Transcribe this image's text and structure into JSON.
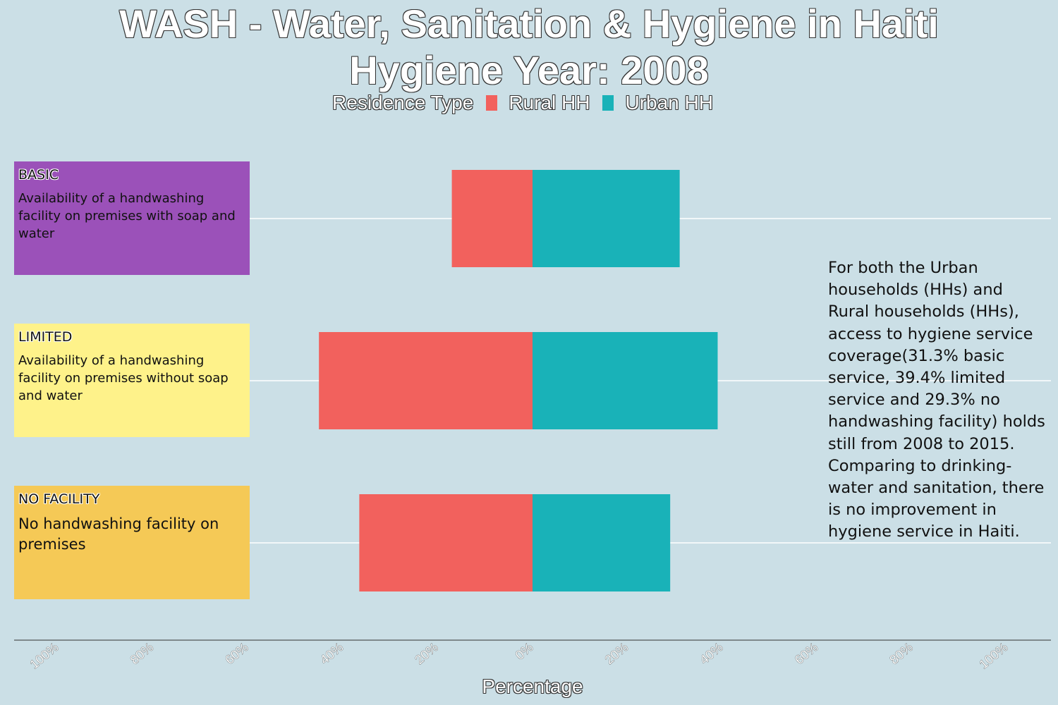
{
  "chart_data": {
    "type": "bar",
    "orientation": "horizontal-diverging",
    "title": "WASH - Water, Sanitation & Hygiene in Haiti",
    "subtitle": "Hygiene Year: 2008",
    "legend_title": "Residence Type",
    "legend_placement": "top",
    "xlabel": "Percentage",
    "xlim": [
      -100,
      100
    ],
    "x_ticks": [
      "100%",
      "80%",
      "60%",
      "40%",
      "20%",
      "0%",
      "20%",
      "40%",
      "60%",
      "80%",
      "100%"
    ],
    "grid": true,
    "categories": [
      "BASIC",
      "LIMITED",
      "NO FACILITY"
    ],
    "category_descriptions": [
      "Availability of a handwashing facility on premises with soap and water",
      "Availability of a handwashing facility on premises without soap and water",
      "No handwashing facility on premises"
    ],
    "category_colors": [
      "#9b51b9",
      "#fef28a",
      "#f5c956"
    ],
    "series": [
      {
        "name": "Rural HH",
        "color": "#f2615d",
        "values": [
          17,
          45,
          36.5
        ]
      },
      {
        "name": "Urban HH",
        "color": "#19b2b8",
        "values": [
          31,
          39,
          29
        ]
      }
    ],
    "annotation": "For both the Urban households (HHs) and Rural households (HHs), access to hygiene service coverage(31.3% basic service, 39.4% limited service and 29.3% no handwashing facility) holds still from 2008 to 2015. Comparing to drinking-water and sanitation, there is no improvement in hygiene service in Haiti."
  }
}
